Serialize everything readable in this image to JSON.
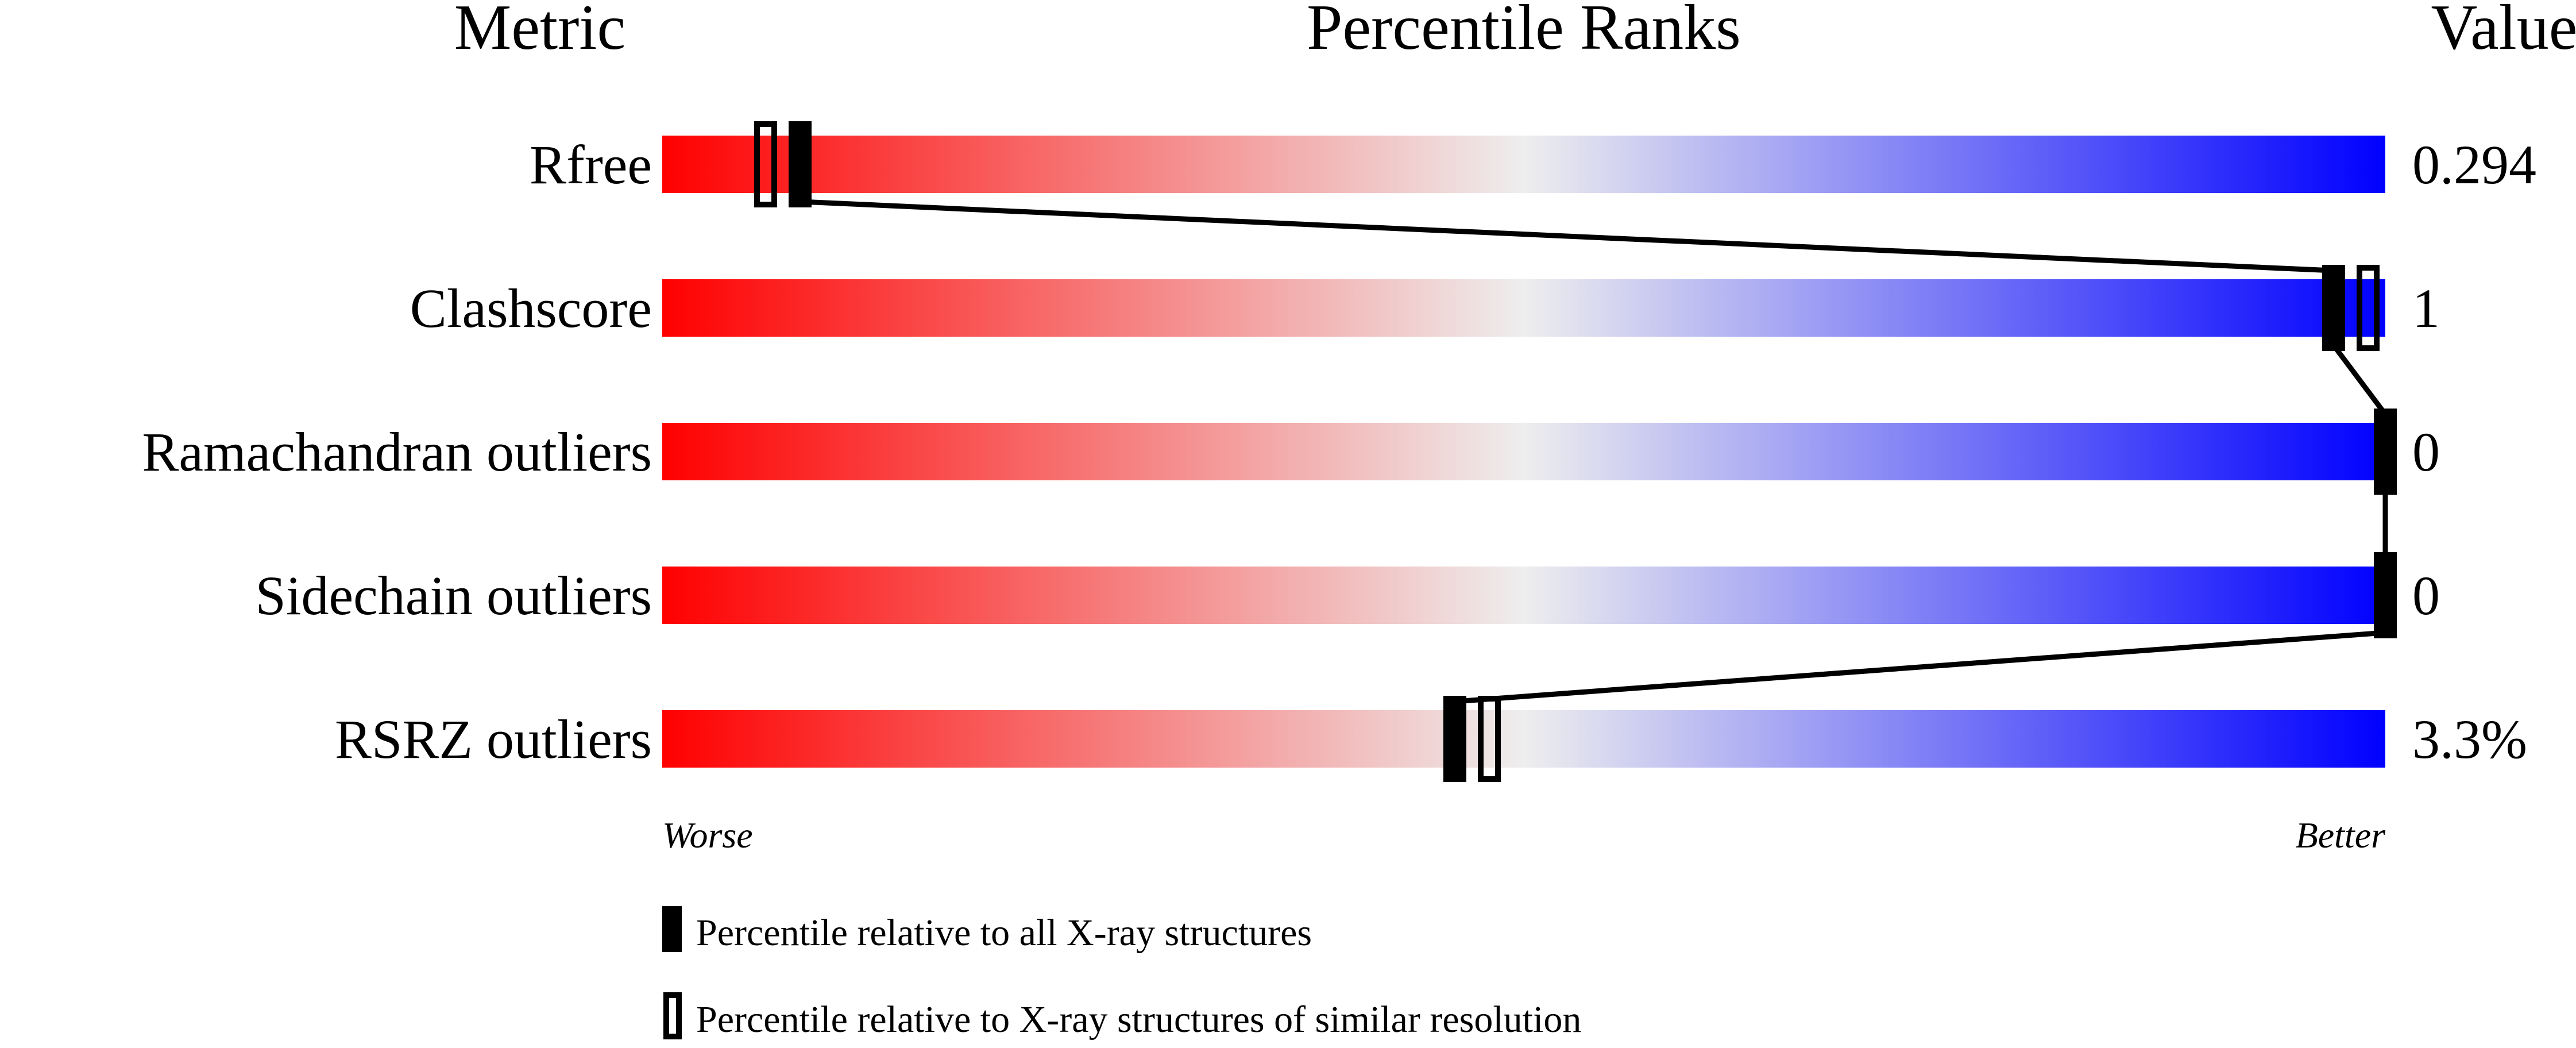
{
  "chart_data": {
    "type": "percentile-slider",
    "headers": {
      "metric": "Metric",
      "ranks": "Percentile Ranks",
      "value": "Value"
    },
    "xlim": [
      0,
      100
    ],
    "axis_labels": {
      "worse": "Worse",
      "better": "Better"
    },
    "gradient_colors": [
      "#ff0000",
      "#eeeeee",
      "#0000ff"
    ],
    "rows": [
      {
        "metric": "Rfree",
        "value": "0.294",
        "percentile_all": 8,
        "percentile_similar": 6
      },
      {
        "metric": "Clashscore",
        "value": "1",
        "percentile_all": 97,
        "percentile_similar": 99
      },
      {
        "metric": "Ramachandran outliers",
        "value": "0",
        "percentile_all": 100,
        "percentile_similar": null
      },
      {
        "metric": "Sidechain outliers",
        "value": "0",
        "percentile_all": 100,
        "percentile_similar": null
      },
      {
        "metric": "RSRZ outliers",
        "value": "3.3%",
        "percentile_all": 46,
        "percentile_similar": 48
      }
    ],
    "legend": [
      {
        "style": "filled",
        "label": "Percentile relative to all X-ray structures"
      },
      {
        "style": "open",
        "label": "Percentile relative to X-ray structures of similar resolution"
      }
    ]
  }
}
